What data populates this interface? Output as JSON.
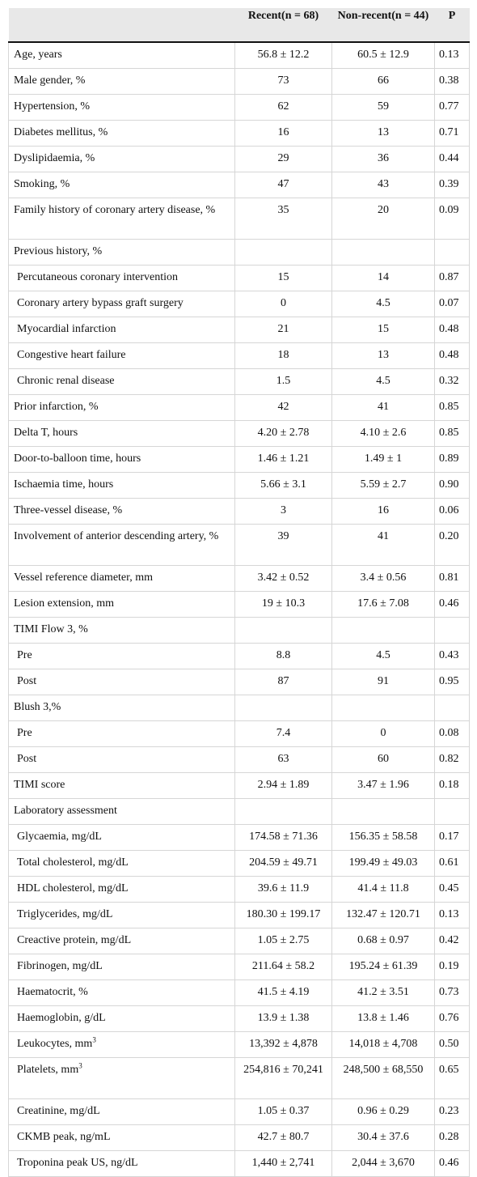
{
  "table": {
    "headers": [
      "",
      "Recent(n = 68)",
      "Non-recent(n = 44)",
      "P"
    ],
    "rows": [
      {
        "label": "Age, years",
        "recent": "56.8 ± 12.2",
        "nonrecent": "60.5 ± 12.9",
        "p": "0.13"
      },
      {
        "label": "Male gender, %",
        "recent": "73",
        "nonrecent": "66",
        "p": "0.38"
      },
      {
        "label": "Hypertension, %",
        "recent": "62",
        "nonrecent": "59",
        "p": "0.77"
      },
      {
        "label": "Diabetes mellitus, %",
        "recent": "16",
        "nonrecent": "13",
        "p": "0.71"
      },
      {
        "label": "Dyslipidaemia, %",
        "recent": "29",
        "nonrecent": "36",
        "p": "0.44"
      },
      {
        "label": "Smoking, %",
        "recent": "47",
        "nonrecent": "43",
        "p": "0.39"
      },
      {
        "label": "Family history of coronary artery disease, %",
        "recent": "35",
        "nonrecent": "20",
        "p": "0.09",
        "tall": true
      },
      {
        "label": "Previous history, %",
        "recent": "",
        "nonrecent": "",
        "p": ""
      },
      {
        "label": "Percutaneous coronary intervention",
        "recent": "15",
        "nonrecent": "14",
        "p": "0.87",
        "sub": true
      },
      {
        "label": "Coronary artery bypass graft surgery",
        "recent": "0",
        "nonrecent": "4.5",
        "p": "0.07",
        "sub": true
      },
      {
        "label": "Myocardial infarction",
        "recent": "21",
        "nonrecent": "15",
        "p": "0.48",
        "sub": true
      },
      {
        "label": "Congestive heart failure",
        "recent": "18",
        "nonrecent": "13",
        "p": "0.48",
        "sub": true
      },
      {
        "label": "Chronic renal disease",
        "recent": "1.5",
        "nonrecent": "4.5",
        "p": "0.32",
        "sub": true
      },
      {
        "label": "Prior infarction, %",
        "recent": "42",
        "nonrecent": "41",
        "p": "0.85"
      },
      {
        "label": "Delta T, hours",
        "recent": "4.20 ± 2.78",
        "nonrecent": "4.10 ± 2.6",
        "p": "0.85"
      },
      {
        "label": "Door-to-balloon time, hours",
        "recent": "1.46 ± 1.21",
        "nonrecent": "1.49 ± 1",
        "p": "0.89"
      },
      {
        "label": "Ischaemia time, hours",
        "recent": "5.66 ± 3.1",
        "nonrecent": "5.59 ± 2.7",
        "p": "0.90"
      },
      {
        "label": "Three-vessel disease, %",
        "recent": "3",
        "nonrecent": "16",
        "p": "0.06"
      },
      {
        "label": "Involvement of anterior descending artery, %",
        "recent": "39",
        "nonrecent": "41",
        "p": "0.20",
        "tall": true
      },
      {
        "label": "Vessel reference diameter, mm",
        "recent": "3.42 ± 0.52",
        "nonrecent": "3.4 ± 0.56",
        "p": "0.81"
      },
      {
        "label": "Lesion extension, mm",
        "recent": "19 ± 10.3",
        "nonrecent": "17.6 ± 7.08",
        "p": "0.46"
      },
      {
        "label": "TIMI Flow 3, %",
        "recent": "",
        "nonrecent": "",
        "p": ""
      },
      {
        "label": "Pre",
        "recent": "8.8",
        "nonrecent": "4.5",
        "p": "0.43",
        "sub": true
      },
      {
        "label": "Post",
        "recent": "87",
        "nonrecent": "91",
        "p": "0.95",
        "sub": true
      },
      {
        "label": "Blush 3,%",
        "recent": "",
        "nonrecent": "",
        "p": ""
      },
      {
        "label": "Pre",
        "recent": "7.4",
        "nonrecent": "0",
        "p": "0.08",
        "sub": true
      },
      {
        "label": "Post",
        "recent": "63",
        "nonrecent": "60",
        "p": "0.82",
        "sub": true
      },
      {
        "label": "TIMI score",
        "recent": "2.94 ± 1.89",
        "nonrecent": "3.47 ± 1.96",
        "p": "0.18"
      },
      {
        "label": "Laboratory assessment",
        "recent": "",
        "nonrecent": "",
        "p": ""
      },
      {
        "label": "Glycaemia, mg/dL",
        "recent": "174.58 ± 71.36",
        "nonrecent": "156.35 ± 58.58",
        "p": "0.17",
        "sub": true
      },
      {
        "label": "Total cholesterol, mg/dL",
        "recent": "204.59 ± 49.71",
        "nonrecent": "199.49 ± 49.03",
        "p": "0.61",
        "sub": true
      },
      {
        "label": "HDL cholesterol, mg/dL",
        "recent": "39.6 ± 11.9",
        "nonrecent": "41.4 ± 11.8",
        "p": "0.45",
        "sub": true
      },
      {
        "label": "Triglycerides, mg/dL",
        "recent": "180.30 ± 199.17",
        "nonrecent": "132.47 ± 120.71",
        "p": "0.13",
        "sub": true
      },
      {
        "label": "Creactive protein, mg/dL",
        "recent": "1.05 ± 2.75",
        "nonrecent": "0.68 ± 0.97",
        "p": "0.42",
        "sub": true
      },
      {
        "label": "Fibrinogen, mg/dL",
        "recent": "211.64 ± 58.2",
        "nonrecent": "195.24 ± 61.39",
        "p": "0.19",
        "sub": true
      },
      {
        "label": "Haematocrit, %",
        "recent": "41.5 ± 4.19",
        "nonrecent": "41.2 ± 3.51",
        "p": "0.73",
        "sub": true
      },
      {
        "label": "Haemoglobin, g/dL",
        "recent": "13.9 ± 1.38",
        "nonrecent": "13.8 ± 1.46",
        "p": "0.76",
        "sub": true
      },
      {
        "label": "Leukocytes, mm",
        "sup": "3",
        "recent": "13,392 ± 4,878",
        "nonrecent": "14,018 ± 4,708",
        "p": "0.50",
        "sub": true
      },
      {
        "label": "Platelets, mm",
        "sup": "3",
        "recent": "254,816 ± 70,241",
        "nonrecent": "248,500 ± 68,550",
        "p": "0.65",
        "sub": true,
        "tall": true
      },
      {
        "label": "Creatinine, mg/dL",
        "recent": "1.05 ± 0.37",
        "nonrecent": "0.96 ± 0.29",
        "p": "0.23",
        "sub": true
      },
      {
        "label": "CKMB peak, ng/mL",
        "recent": "42.7 ± 80.7",
        "nonrecent": "30.4 ± 37.6",
        "p": "0.28",
        "sub": true
      },
      {
        "label": "Troponina peak US, ng/dL",
        "recent": "1,440 ± 2,741",
        "nonrecent": "2,044 ± 3,670",
        "p": "0.46",
        "sub": true
      }
    ]
  }
}
